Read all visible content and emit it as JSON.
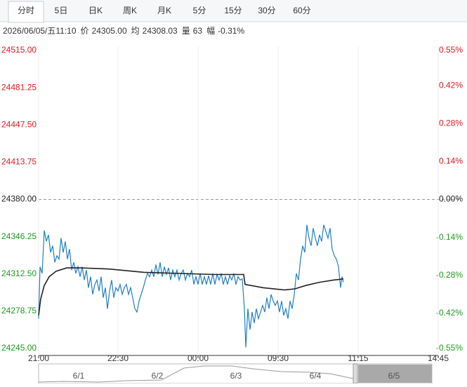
{
  "tabs": [
    "分时",
    "5日",
    "日K",
    "周K",
    "月K",
    "5分",
    "15分",
    "30分",
    "60分"
  ],
  "info": {
    "time": "2026/06/05/五11:10",
    "fields": [
      {
        "label": "价",
        "value": "24305.00"
      },
      {
        "label": "均",
        "value": "24308.03"
      },
      {
        "label": "量",
        "value": "63"
      },
      {
        "label": "幅",
        "value": "-0.31%"
      }
    ]
  },
  "chart_data": {
    "type": "line",
    "x": [
      0,
      2,
      5,
      8,
      11,
      14,
      17,
      20,
      23,
      26,
      29,
      32,
      35,
      38,
      41,
      44,
      47,
      50,
      53,
      56,
      59,
      62,
      65,
      68,
      71,
      74,
      77,
      80,
      83,
      86,
      89,
      92,
      95,
      98,
      101,
      104,
      107,
      110,
      113,
      116,
      119,
      122,
      125,
      128,
      131,
      134,
      137,
      140,
      143,
      146,
      149,
      152,
      155,
      158,
      161,
      164,
      167,
      170,
      173,
      176,
      179,
      182,
      185,
      188,
      191,
      194,
      197,
      200,
      203,
      206,
      209,
      212,
      215,
      218,
      221,
      224,
      227,
      230,
      233,
      236,
      239,
      242,
      245,
      248,
      251,
      254,
      257,
      260,
      263,
      266,
      269,
      272,
      275,
      278,
      281,
      284,
      287,
      290,
      293,
      295,
      298,
      301,
      304,
      307,
      310,
      313,
      316,
      319,
      322,
      325,
      328,
      331,
      334,
      337,
      340,
      343,
      346,
      349,
      352,
      355,
      358,
      361,
      364,
      367,
      370,
      373,
      376,
      379,
      382,
      385,
      388,
      391,
      394,
      397,
      400,
      403,
      406,
      409,
      412,
      415,
      418,
      421,
      424,
      427,
      430,
      432,
      434
    ],
    "series": [
      {
        "color": "#1f7fc4",
        "values": [
          24272,
          24319,
          24313,
          24352,
          24342,
          24348,
          24332,
          24338,
          24323,
          24329,
          24326,
          24345,
          24332,
          24342,
          24326,
          24335,
          24316,
          24323,
          24313,
          24319,
          24310,
          24319,
          24307,
          24316,
          24300,
          24310,
          24294,
          24303,
          24307,
          24297,
          24310,
          24291,
          24300,
          24281,
          24297,
          24307,
          24291,
          24300,
          24297,
          24303,
          24294,
          24300,
          24303,
          24294,
          24300,
          24291,
          24281,
          24278,
          24288,
          24294,
          24300,
          24307,
          24313,
          24310,
          24316,
          24310,
          24321,
          24312,
          24323,
          24310,
          24319,
          24312,
          24318,
          24307,
          24316,
          24310,
          24316,
          24307,
          24313,
          24316,
          24307,
          24313,
          24310,
          24316,
          24303,
          24310,
          24303,
          24313,
          24303,
          24310,
          24303,
          24311,
          24303,
          24313,
          24303,
          24312,
          24307,
          24313,
          24303,
          24310,
          24303,
          24311,
          24307,
          24313,
          24303,
          24310,
          24307,
          24308,
          24281,
          24246,
          24281,
          24262,
          24278,
          24268,
          24281,
          24272,
          24278,
          24284,
          24278,
          24291,
          24281,
          24294,
          24288,
          24284,
          24288,
          24278,
          24288,
          24275,
          24281,
          24272,
          24288,
          24281,
          24294,
          24313,
          24307,
          24326,
          24338,
          24332,
          24357,
          24345,
          24338,
          24354,
          24345,
          24338,
          24348,
          24342,
          24357,
          24351,
          24345,
          24354,
          24335,
          24329,
          24326,
          24319,
          24300,
          24310,
          24305
        ]
      },
      {
        "color": "#222222",
        "x": [
          0,
          3,
          8,
          15,
          25,
          40,
          60,
          100,
          150,
          200,
          250,
          292,
          294,
          320,
          350,
          365,
          380,
          400,
          420,
          434
        ],
        "values": [
          24275,
          24290,
          24302,
          24310,
          24315,
          24318,
          24318,
          24317,
          24314,
          24313,
          24312,
          24312,
          24303,
          24300,
          24298,
          24299,
          24302,
          24305,
          24307,
          24308
        ]
      }
    ],
    "xlim": [
      0,
      569
    ],
    "xticks": [
      {
        "value": 0,
        "label": "21:00"
      },
      {
        "value": 113,
        "label": "22:30"
      },
      {
        "value": 227,
        "label": "00:00"
      },
      {
        "value": 341,
        "label": "09:30"
      },
      {
        "value": 455,
        "label": "11:15"
      },
      {
        "value": 569,
        "label": "14:45"
      }
    ],
    "ylim": [
      24245,
      24515
    ],
    "yticks": [
      {
        "value": 24515,
        "label": "24515.00"
      },
      {
        "value": 24481.25,
        "label": "24481.25"
      },
      {
        "value": 24447.5,
        "label": "24447.50"
      },
      {
        "value": 24413.75,
        "label": "24413.75"
      },
      {
        "value": 24380,
        "label": "24380.00"
      },
      {
        "value": 24346.25,
        "label": "24346.25"
      },
      {
        "value": 24312.5,
        "label": "24312.50"
      },
      {
        "value": 24278.75,
        "label": "24278.75"
      },
      {
        "value": 24245,
        "label": "24245.00"
      }
    ],
    "y2lim": [
      -0.55,
      0.55
    ],
    "y2ticks": [
      {
        "value": 0.55,
        "label": "0.55%"
      },
      {
        "value": 0.42,
        "label": "0.42%"
      },
      {
        "value": 0.28,
        "label": "0.28%"
      },
      {
        "value": 0.14,
        "label": "0.14%"
      },
      {
        "value": 0,
        "label": "0.00%"
      },
      {
        "value": -0.14,
        "label": "-0.14%"
      },
      {
        "value": -0.28,
        "label": "-0.28%"
      },
      {
        "value": -0.42,
        "label": "-0.42%"
      },
      {
        "value": -0.55,
        "label": "-0.55%"
      }
    ],
    "up_color": "#e5171f",
    "down_color": "#1e9a1e",
    "grid": true
  },
  "navigator": {
    "labels": [
      "6/1",
      "6/2",
      "6/3",
      "6/4",
      "6/5"
    ]
  }
}
